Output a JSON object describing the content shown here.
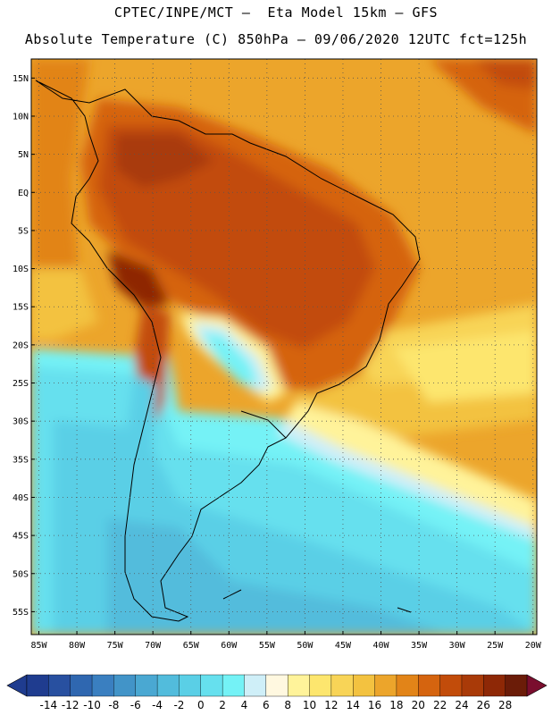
{
  "title": {
    "line1": "CPTEC/INPE/MCT –  Eta Model 15km – GFS",
    "line2": "Absolute Temperature (C) 850hPa – 09/06/2020 12UTC fct=125h"
  },
  "axes": {
    "lat_labels": [
      "15N",
      "10N",
      "5N",
      "EQ",
      "5S",
      "10S",
      "15S",
      "20S",
      "25S",
      "30S",
      "35S",
      "40S",
      "45S",
      "50S",
      "55S"
    ],
    "lat_values": [
      15,
      10,
      5,
      0,
      -5,
      -10,
      -15,
      -20,
      -25,
      -30,
      -35,
      -40,
      -45,
      -50,
      -55
    ],
    "lon_labels": [
      "85W",
      "80W",
      "75W",
      "70W",
      "65W",
      "60W",
      "55W",
      "50W",
      "45W",
      "40W",
      "35W",
      "30W",
      "25W",
      "20W"
    ],
    "lon_values": [
      -85,
      -80,
      -75,
      -70,
      -65,
      -60,
      -55,
      -50,
      -45,
      -40,
      -35,
      -30,
      -25,
      -20
    ],
    "lon_range": [
      -86,
      -19.5
    ],
    "lat_range": [
      -58,
      17.5
    ],
    "grid": "dotted"
  },
  "colorbar": {
    "labels": [
      "-14",
      "-12",
      "-10",
      "-8",
      "-6",
      "-4",
      "-2",
      "0",
      "2",
      "4",
      "6",
      "8",
      "10",
      "12",
      "14",
      "16",
      "18",
      "20",
      "22",
      "24",
      "26",
      "28"
    ],
    "colors": [
      "#1f3c8f",
      "#2850a0",
      "#2f67b0",
      "#3a7fc0",
      "#4294c8",
      "#4aa8d2",
      "#52bcdc",
      "#5acfe6",
      "#66e0ee",
      "#74f2f6",
      "#cfeff8",
      "#fff8e0",
      "#fff39a",
      "#fde66e",
      "#f8d457",
      "#f3c240",
      "#eca52b",
      "#e28418",
      "#d5640f",
      "#c24c0a",
      "#a93a08",
      "#8e2806",
      "#6b1c08"
    ]
  },
  "map_legend": {
    "field": "Absolute Temperature (C) 850hPa",
    "min_value": -14,
    "max_value": 28,
    "interval": 2
  }
}
